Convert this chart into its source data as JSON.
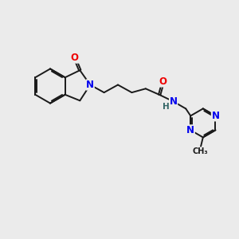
{
  "background_color": "#ebebeb",
  "bond_color": "#1a1a1a",
  "bond_width": 1.4,
  "atom_colors": {
    "N": "#0000ee",
    "O": "#ee0000",
    "H": "#336666",
    "C": "#1a1a1a"
  },
  "font_size_atoms": 8.5,
  "xlim": [
    0,
    10
  ],
  "ylim": [
    0,
    10
  ]
}
